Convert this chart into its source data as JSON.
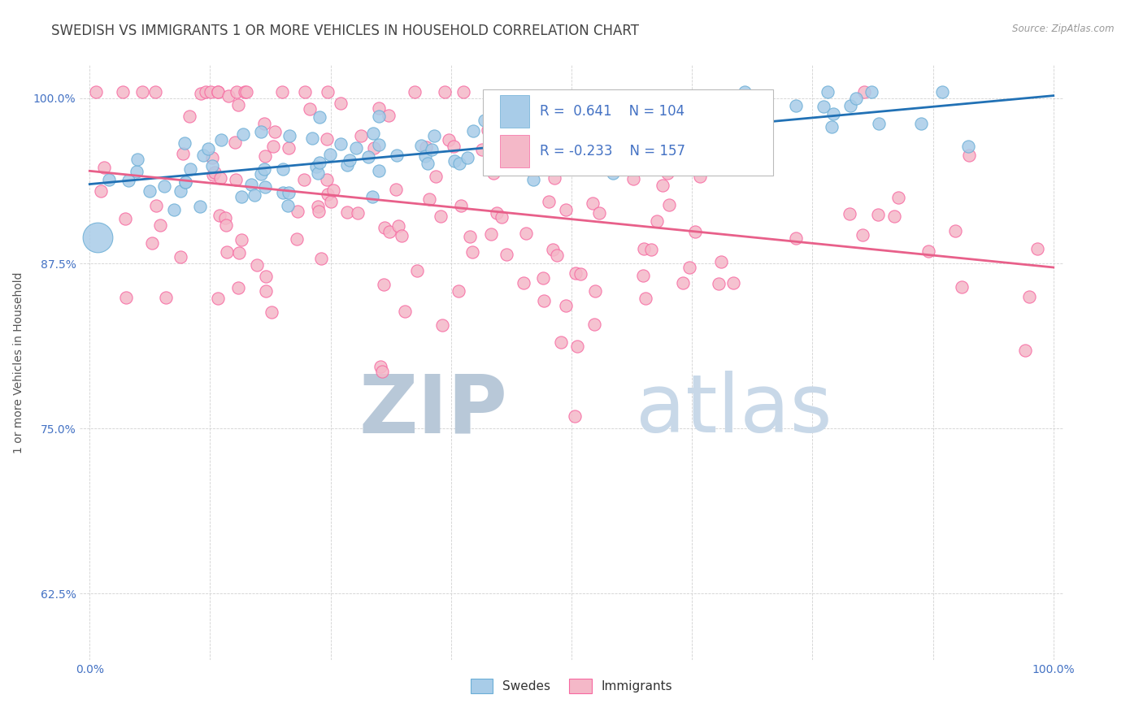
{
  "title": "SWEDISH VS IMMIGRANTS 1 OR MORE VEHICLES IN HOUSEHOLD CORRELATION CHART",
  "source": "Source: ZipAtlas.com",
  "ylabel": "1 or more Vehicles in Household",
  "ytick_labels": [
    "100.0%",
    "87.5%",
    "75.0%",
    "62.5%"
  ],
  "ytick_values": [
    1.0,
    0.875,
    0.75,
    0.625
  ],
  "legend_swedes": "Swedes",
  "legend_immigrants": "Immigrants",
  "R_swedes": 0.641,
  "N_swedes": 104,
  "R_immigrants": -0.233,
  "N_immigrants": 157,
  "swede_color": "#a8cce8",
  "immigrant_color": "#f4b8c8",
  "swede_edge_color": "#6baed6",
  "immigrant_edge_color": "#f768a1",
  "swede_line_color": "#2171b5",
  "immigrant_line_color": "#e8608a",
  "background_color": "#ffffff",
  "title_color": "#444444",
  "axis_label_color": "#4472c4",
  "swede_trendline_x": [
    0.0,
    1.0
  ],
  "swede_trendline_y": [
    0.935,
    1.002
  ],
  "immigrant_trendline_x": [
    0.0,
    1.0
  ],
  "immigrant_trendline_y": [
    0.945,
    0.872
  ],
  "xlim": [
    -0.01,
    1.01
  ],
  "ylim": [
    0.575,
    1.025
  ],
  "watermark_zip": "ZIP",
  "watermark_atlas": "atlas",
  "watermark_color": "#cddde8",
  "grid_color": "#cccccc",
  "title_fontsize": 12,
  "label_fontsize": 10,
  "tick_fontsize": 10,
  "dot_size": 120,
  "big_dot_size": 700,
  "seed_swedes": 42,
  "seed_immigrants": 99
}
